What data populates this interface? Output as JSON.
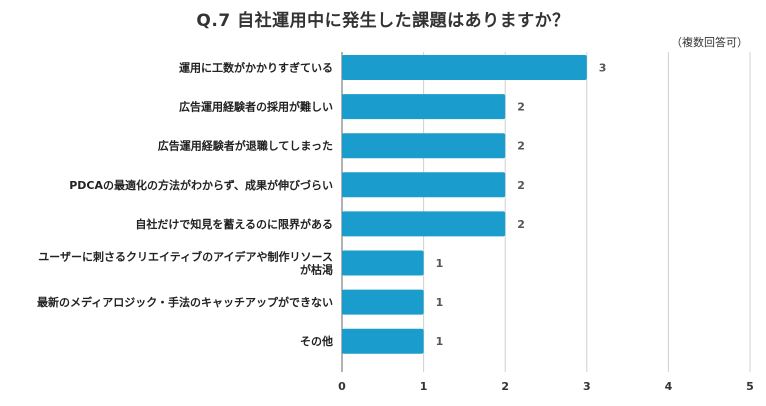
{
  "title": "Q.7 自社運用中に発生した課題はありますか？",
  "note": "（複数回答可）",
  "chart_data": {
    "type": "bar",
    "orientation": "horizontal",
    "categories": [
      "運用に工数がかかりすぎている",
      "広告運用経験者の採用が難しい",
      "広告運用経験者が退職してしまった",
      "PDCAの最適化の方法がわからず、成果が伸びづらい",
      "自社だけで知見を蓄えるのに限界がある",
      "ユーザーに刺さるクリエイティブのアイデアや制作リソースが枯渇",
      "最新のメディアロジック・手法のキャッチアップができない",
      "その他"
    ],
    "category_lines": [
      [
        "運用に工数がかかりすぎている"
      ],
      [
        "広告運用経験者の採用が難しい"
      ],
      [
        "広告運用経験者が退職してしまった"
      ],
      [
        "PDCAの最適化の方法がわからず、成果が伸びづらい"
      ],
      [
        "自社だけで知見を蓄えるのに限界がある"
      ],
      [
        "ユーザーに刺さるクリエイティブのアイデアや制作リソース",
        "が枯渇"
      ],
      [
        "最新のメディアロジック・手法のキャッチアップができない"
      ],
      [
        "その他"
      ]
    ],
    "values": [
      3,
      2,
      2,
      2,
      2,
      1,
      1,
      1
    ],
    "xlim": [
      0,
      5
    ],
    "xticks": [
      "0",
      "1",
      "2",
      "3",
      "4",
      "5"
    ],
    "grid": true,
    "bar_color": "#1a9ccc"
  }
}
